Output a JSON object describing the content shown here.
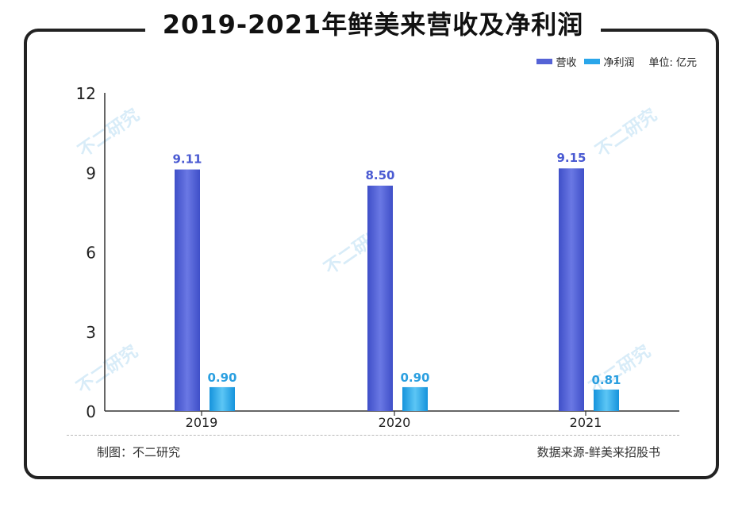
{
  "title": "2019-2021年鲜美来营收及净利润",
  "legend": {
    "unit_label": "单位: 亿元"
  },
  "footer": {
    "left": "制图：不二研究",
    "right": "数据来源-鲜美来招股书"
  },
  "watermark": "不二研究",
  "colors": {
    "revenue": "#5563d6",
    "profit": "#2aa6ea",
    "revenue_label": "#4a5ad2",
    "profit_label": "#2a9fe0"
  },
  "chart_data": {
    "type": "bar",
    "categories": [
      "2019",
      "2020",
      "2021"
    ],
    "series": [
      {
        "name": "营收",
        "values": [
          9.11,
          8.5,
          9.15
        ],
        "labels": [
          "9.11",
          "8.50",
          "9.15"
        ]
      },
      {
        "name": "净利润",
        "values": [
          0.9,
          0.9,
          0.81
        ],
        "labels": [
          "0.90",
          "0.90",
          "0.81"
        ]
      }
    ],
    "ylim": [
      0,
      12
    ],
    "yticks": [
      "0",
      "3",
      "6",
      "9",
      "12"
    ],
    "title": "2019-2021年鲜美来营收及净利润",
    "xlabel": "",
    "ylabel": "",
    "legend_position": "top-right",
    "grid": false
  }
}
